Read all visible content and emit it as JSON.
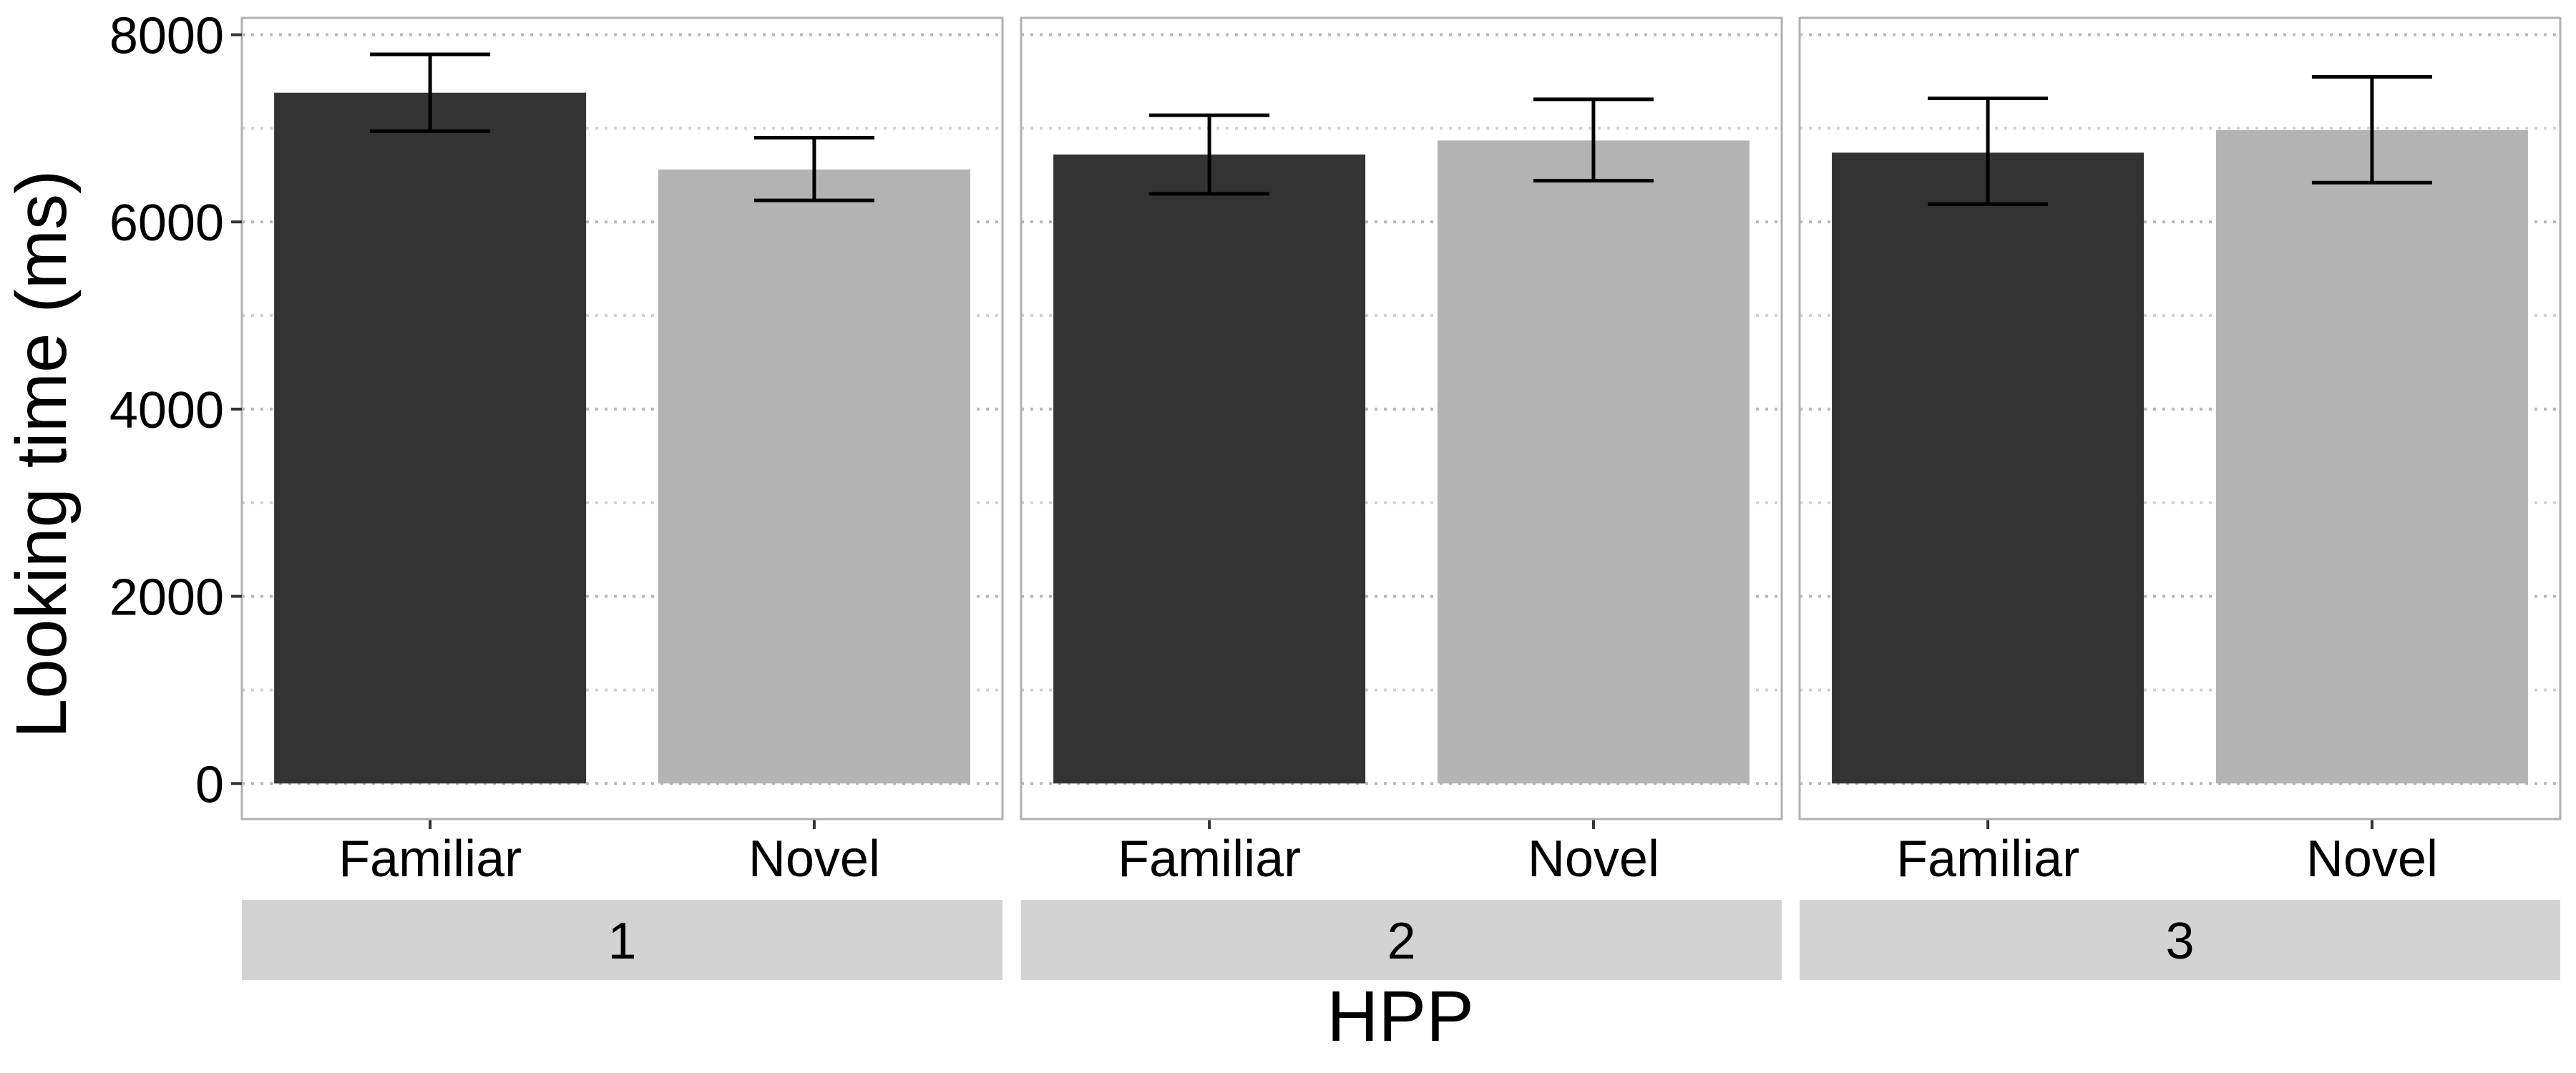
{
  "chart_data": {
    "type": "bar",
    "xlabel": "HPP",
    "ylabel": "Looking time (ms)",
    "ylim": [
      -380,
      8180
    ],
    "yticks": [
      0,
      2000,
      4000,
      6000,
      8000
    ],
    "ytick_labels": [
      "0",
      "2000",
      "4000",
      "6000",
      "8000"
    ],
    "grid": "dotted horizontal major and minor gridlines",
    "categories": [
      "Familiar",
      "Novel"
    ],
    "series_colors": {
      "Familiar": "#333333",
      "Novel": "#b3b3b3"
    },
    "facets": [
      {
        "label": "1",
        "bars": [
          {
            "category": "Familiar",
            "value": 7380,
            "err_low": 6970,
            "err_high": 7790
          },
          {
            "category": "Novel",
            "value": 6560,
            "err_low": 6230,
            "err_high": 6900
          }
        ]
      },
      {
        "label": "2",
        "bars": [
          {
            "category": "Familiar",
            "value": 6720,
            "err_low": 6300,
            "err_high": 7140
          },
          {
            "category": "Novel",
            "value": 6870,
            "err_low": 6440,
            "err_high": 7310
          }
        ]
      },
      {
        "label": "3",
        "bars": [
          {
            "category": "Familiar",
            "value": 6740,
            "err_low": 6190,
            "err_high": 7320
          },
          {
            "category": "Novel",
            "value": 6980,
            "err_low": 6420,
            "err_high": 7550
          }
        ]
      }
    ]
  }
}
